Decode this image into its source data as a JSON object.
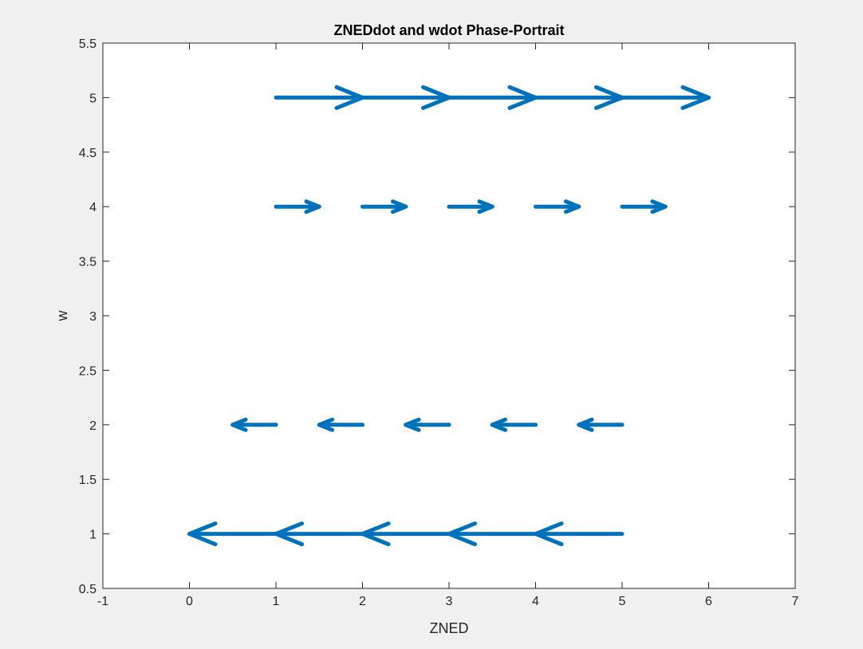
{
  "chart_data": {
    "type": "quiver",
    "title": "ZNEDdot and wdot Phase-Portrait",
    "xlabel": "ZNED",
    "ylabel": "w",
    "xlim": [
      -1,
      7
    ],
    "ylim": [
      0.5,
      5.5
    ],
    "xticks": [
      "-1",
      "0",
      "1",
      "2",
      "3",
      "4",
      "5",
      "6",
      "7"
    ],
    "yticks": [
      "0.5",
      "1",
      "1.5",
      "2",
      "2.5",
      "3",
      "3.5",
      "4",
      "4.5",
      "5",
      "5.5"
    ],
    "grid": false,
    "box": true,
    "arrow_color": "#0072BD",
    "arrows": [
      {
        "x": 1,
        "y": 1,
        "u": -1,
        "v": 0
      },
      {
        "x": 2,
        "y": 1,
        "u": -1,
        "v": 0
      },
      {
        "x": 3,
        "y": 1,
        "u": -1,
        "v": 0
      },
      {
        "x": 4,
        "y": 1,
        "u": -1,
        "v": 0
      },
      {
        "x": 5,
        "y": 1,
        "u": -1,
        "v": 0
      },
      {
        "x": 1,
        "y": 2,
        "u": -0.5,
        "v": 0
      },
      {
        "x": 2,
        "y": 2,
        "u": -0.5,
        "v": 0
      },
      {
        "x": 3,
        "y": 2,
        "u": -0.5,
        "v": 0
      },
      {
        "x": 4,
        "y": 2,
        "u": -0.5,
        "v": 0
      },
      {
        "x": 5,
        "y": 2,
        "u": -0.5,
        "v": 0
      },
      {
        "x": 1,
        "y": 4,
        "u": 0.5,
        "v": 0
      },
      {
        "x": 2,
        "y": 4,
        "u": 0.5,
        "v": 0
      },
      {
        "x": 3,
        "y": 4,
        "u": 0.5,
        "v": 0
      },
      {
        "x": 4,
        "y": 4,
        "u": 0.5,
        "v": 0
      },
      {
        "x": 5,
        "y": 4,
        "u": 0.5,
        "v": 0
      },
      {
        "x": 1,
        "y": 5,
        "u": 1,
        "v": 0
      },
      {
        "x": 2,
        "y": 5,
        "u": 1,
        "v": 0
      },
      {
        "x": 3,
        "y": 5,
        "u": 1,
        "v": 0
      },
      {
        "x": 4,
        "y": 5,
        "u": 1,
        "v": 0
      },
      {
        "x": 5,
        "y": 5,
        "u": 1,
        "v": 0
      }
    ]
  }
}
